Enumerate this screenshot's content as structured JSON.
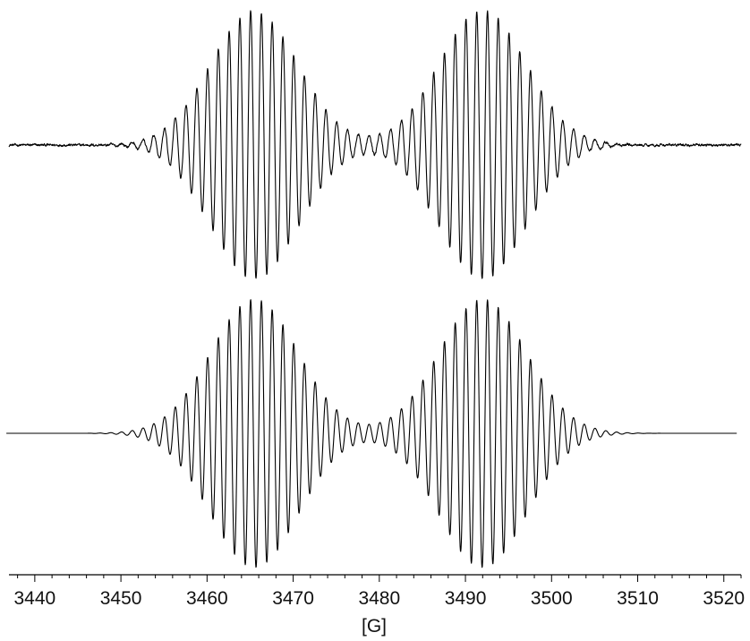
{
  "chart_data": {
    "type": "line",
    "title": "",
    "xlabel": "[G]",
    "ylabel": "",
    "xlim": [
      3437,
      3522
    ],
    "grid": false,
    "legend": "none",
    "xticks": [
      3440,
      3450,
      3460,
      3470,
      3480,
      3490,
      3500,
      3510,
      3520
    ],
    "xtick_labels": [
      "3440",
      "3450",
      "3460",
      "3470",
      "3480",
      "3490",
      "3500",
      "3510",
      "3520"
    ],
    "minor_tick_step": 2,
    "line_color": "#000000",
    "series": [
      {
        "role": "experimental",
        "trace_start": 3437,
        "trace_end": 3522,
        "hyperfine_spacing": 1.25,
        "envelope_centers": [
          3465.5,
          3492.0
        ],
        "envelope_width": 7.2,
        "signal_window": [
          3446,
          3512
        ],
        "max_peak_value": 1.0,
        "noise_level": 0.012
      },
      {
        "role": "simulated",
        "trace_start": 3436.7,
        "trace_end": 3521.5,
        "hyperfine_spacing": 1.25,
        "envelope_centers": [
          3465.5,
          3492.0
        ],
        "envelope_width": 7.2,
        "signal_window": [
          3446,
          3513
        ],
        "max_peak_value": 1.0,
        "noise_level": 0
      }
    ]
  }
}
